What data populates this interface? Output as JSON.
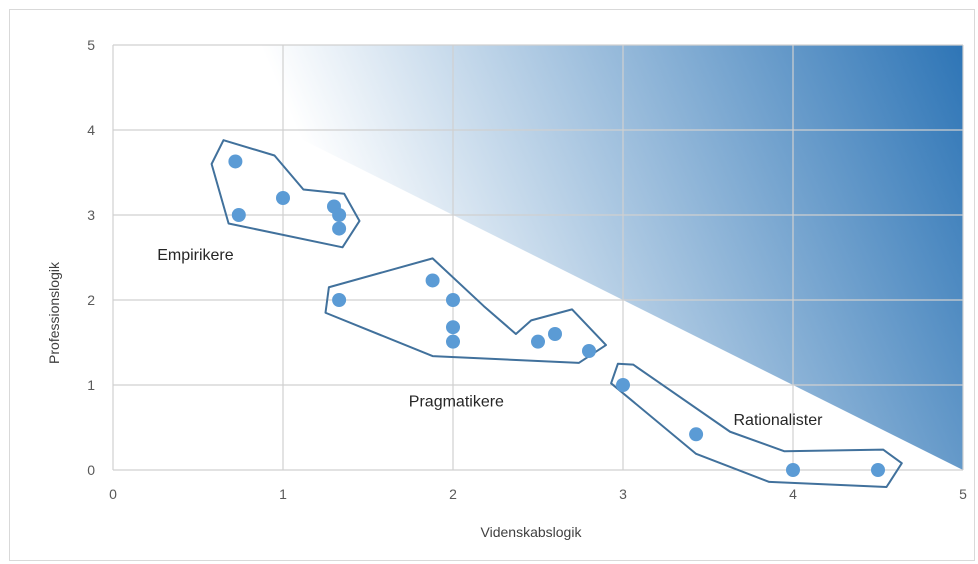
{
  "chart_data": {
    "type": "scatter",
    "xlabel": "Videnskabslogik",
    "ylabel": "Professionslogik",
    "xlim": [
      0,
      5
    ],
    "ylim": [
      0,
      5
    ],
    "x_ticks": [
      "0",
      "1",
      "2",
      "3",
      "4",
      "5"
    ],
    "y_ticks": [
      "0",
      "1",
      "2",
      "3",
      "4",
      "5"
    ],
    "grid": true,
    "series": [
      {
        "color": "#5b9bd5",
        "points": [
          {
            "x": 0.72,
            "y": 3.63
          },
          {
            "x": 0.74,
            "y": 3.0
          },
          {
            "x": 1.0,
            "y": 3.2
          },
          {
            "x": 1.3,
            "y": 3.1
          },
          {
            "x": 1.33,
            "y": 3.0
          },
          {
            "x": 1.33,
            "y": 2.84
          },
          {
            "x": 1.33,
            "y": 2.0
          },
          {
            "x": 1.88,
            "y": 2.23
          },
          {
            "x": 2.0,
            "y": 2.0
          },
          {
            "x": 2.0,
            "y": 1.68
          },
          {
            "x": 2.0,
            "y": 1.51
          },
          {
            "x": 2.5,
            "y": 1.51
          },
          {
            "x": 2.6,
            "y": 1.6
          },
          {
            "x": 2.8,
            "y": 1.4
          },
          {
            "x": 3.0,
            "y": 1.0
          },
          {
            "x": 3.43,
            "y": 0.42
          },
          {
            "x": 4.0,
            "y": 0.0
          },
          {
            "x": 4.5,
            "y": 0.0
          }
        ]
      }
    ],
    "groups": [
      {
        "label": "Empirikere",
        "label_at": {
          "x": 0.26,
          "y": 2.47
        },
        "outline": [
          [
            0.65,
            3.88
          ],
          [
            0.95,
            3.7
          ],
          [
            1.12,
            3.3
          ],
          [
            1.36,
            3.25
          ],
          [
            1.45,
            2.93
          ],
          [
            1.35,
            2.62
          ],
          [
            0.68,
            2.9
          ],
          [
            0.58,
            3.6
          ]
        ]
      },
      {
        "label": "Pragmatikere",
        "label_at": {
          "x": 1.74,
          "y": 0.75
        },
        "outline": [
          [
            1.27,
            2.15
          ],
          [
            1.88,
            2.49
          ],
          [
            2.18,
            1.93
          ],
          [
            2.37,
            1.6
          ],
          [
            2.46,
            1.76
          ],
          [
            2.7,
            1.89
          ],
          [
            2.9,
            1.47
          ],
          [
            2.74,
            1.26
          ],
          [
            1.88,
            1.34
          ],
          [
            1.25,
            1.85
          ]
        ]
      },
      {
        "label": "Rationalister",
        "label_at": {
          "x": 3.65,
          "y": 0.53
        },
        "outline": [
          [
            2.97,
            1.25
          ],
          [
            3.06,
            1.24
          ],
          [
            3.63,
            0.45
          ],
          [
            3.95,
            0.22
          ],
          [
            4.53,
            0.24
          ],
          [
            4.64,
            0.08
          ],
          [
            4.55,
            -0.2
          ],
          [
            3.86,
            -0.14
          ],
          [
            3.43,
            0.19
          ],
          [
            2.93,
            1.02
          ]
        ]
      }
    ],
    "shaded_region": {
      "above_line": "x + y = 5",
      "color_light": "#ffffff",
      "color_dark": "#2e75b6"
    }
  }
}
